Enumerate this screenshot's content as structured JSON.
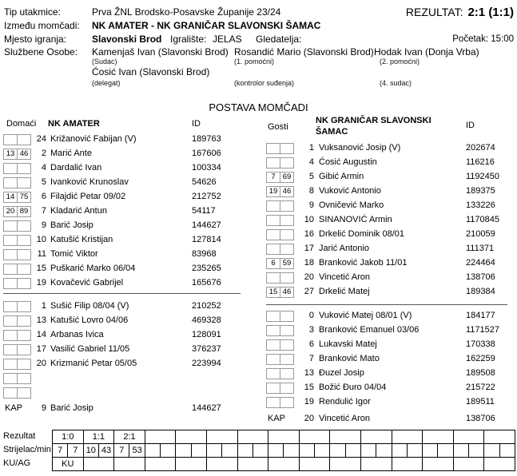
{
  "match": {
    "type_label": "Tip utakmice:",
    "type_value": "Prva ŽNL Brodsko-Posavske Županije 23/24",
    "result_label": "REZULTAT:",
    "result_value": "2:1 (1:1)",
    "teams_label": "Između momčadi:",
    "teams_value": "NK AMATER - NK GRANIČAR SLAVONSKI ŠAMAC",
    "venue_label": "Mjesto igranja:",
    "venue_value": "Slavonski Brod",
    "pitch_label": "Igralište:",
    "pitch_value": "JELAS",
    "spectators_label": "Gledatelja:",
    "kickoff_label": "Početak:",
    "kickoff_value": "15:00",
    "officials_label": "Službene Osobe:",
    "officials": [
      {
        "name": "Kamenjaš Ivan (Slavonski Brod)",
        "role": "(Sudac)"
      },
      {
        "name": "Rosandić Mario (Slavonski Brod)",
        "role": "(1. pomoćni)"
      },
      {
        "name": "Hodak Ivan (Donja Vrba)",
        "role": "(2. pomoćni)"
      },
      {
        "name": "Ćosić Ivan (Slavonski Brod)",
        "role": "(delegat)"
      },
      {
        "name": "",
        "role": "(kontrolor suđenja)"
      },
      {
        "name": "",
        "role": "(4. sudac)"
      }
    ]
  },
  "lineups": {
    "title": "POSTAVA MOMČADI",
    "id_label": "ID",
    "captain_label": "KAP",
    "home": {
      "side_label": "Domaći",
      "team_name": "NK AMATER",
      "starters": [
        {
          "sub_in": "",
          "sub_min": "",
          "num": "24",
          "name": "Križanović Fabijan  (V)",
          "id": "189763"
        },
        {
          "sub_in": "13",
          "sub_min": "46",
          "num": "2",
          "name": "Marić Ante",
          "id": "167606"
        },
        {
          "sub_in": "",
          "sub_min": "",
          "num": "4",
          "name": "Dardalić Ivan",
          "id": "100334"
        },
        {
          "sub_in": "",
          "sub_min": "",
          "num": "5",
          "name": "Ivanković Krunoslav",
          "id": "54626"
        },
        {
          "sub_in": "14",
          "sub_min": "75",
          "num": "6",
          "name": "Filajdić Petar 09/02",
          "id": "212752"
        },
        {
          "sub_in": "20",
          "sub_min": "89",
          "num": "7",
          "name": "Kladarić Antun",
          "id": "54117"
        },
        {
          "sub_in": "",
          "sub_min": "",
          "num": "9",
          "name": "Barić Josip",
          "id": "144627"
        },
        {
          "sub_in": "",
          "sub_min": "",
          "num": "10",
          "name": "Katušić Kristijan",
          "id": "127814"
        },
        {
          "sub_in": "",
          "sub_min": "",
          "num": "11",
          "name": "Tomić Viktor",
          "id": "83968"
        },
        {
          "sub_in": "",
          "sub_min": "",
          "num": "15",
          "name": "Puškarić Marko 06/04",
          "id": "235265"
        },
        {
          "sub_in": "",
          "sub_min": "",
          "num": "19",
          "name": "Kovačević Gabrijel",
          "id": "165676"
        }
      ],
      "subs": [
        {
          "sub_in": "",
          "sub_min": "",
          "num": "1",
          "name": "Sušić Filip 08/04  (V)",
          "id": "210252"
        },
        {
          "sub_in": "",
          "sub_min": "",
          "num": "13",
          "name": "Katušić Lovro 04/06",
          "id": "469328"
        },
        {
          "sub_in": "",
          "sub_min": "",
          "num": "14",
          "name": "Arbanas Ivica",
          "id": "128091"
        },
        {
          "sub_in": "",
          "sub_min": "",
          "num": "17",
          "name": "Vasilić Gabriel 11/05",
          "id": "376237"
        },
        {
          "sub_in": "",
          "sub_min": "",
          "num": "20",
          "name": "Krizmanić Petar 05/05",
          "id": "223994"
        },
        {
          "sub_in": "",
          "sub_min": "",
          "num": "",
          "name": "",
          "id": ""
        },
        {
          "sub_in": "",
          "sub_min": "",
          "num": "",
          "name": "",
          "id": ""
        }
      ],
      "captain": {
        "num": "9",
        "name": "Barić Josip",
        "id": "144627"
      }
    },
    "away": {
      "side_label": "Gosti",
      "team_name": "NK GRANIČAR SLAVONSKI ŠAMAC",
      "starters": [
        {
          "sub_in": "",
          "sub_min": "",
          "num": "1",
          "name": "Vuksanović Josip  (V)",
          "id": "202674"
        },
        {
          "sub_in": "",
          "sub_min": "",
          "num": "4",
          "name": "Ćosić Augustin",
          "id": "116216"
        },
        {
          "sub_in": "7",
          "sub_min": "69",
          "num": "5",
          "name": "Gibić Armin",
          "id": "1192450"
        },
        {
          "sub_in": "19",
          "sub_min": "46",
          "num": "8",
          "name": "Vuković Antonio",
          "id": "189375"
        },
        {
          "sub_in": "",
          "sub_min": "",
          "num": "9",
          "name": "Ovničević Marko",
          "id": "133226"
        },
        {
          "sub_in": "",
          "sub_min": "",
          "num": "10",
          "name": "SINANOVIĆ Armin",
          "id": "1170845"
        },
        {
          "sub_in": "",
          "sub_min": "",
          "num": "16",
          "name": "Drkelić Dominik 08/01",
          "id": "210059"
        },
        {
          "sub_in": "",
          "sub_min": "",
          "num": "17",
          "name": "Jarić Antonio",
          "id": "111371"
        },
        {
          "sub_in": "6",
          "sub_min": "59",
          "num": "18",
          "name": "Branković Jakob 11/01",
          "id": "224464"
        },
        {
          "sub_in": "",
          "sub_min": "",
          "num": "20",
          "name": "Vincetić Aron",
          "id": "138706"
        },
        {
          "sub_in": "15",
          "sub_min": "46",
          "num": "27",
          "name": "Drkelić Matej",
          "id": "189384"
        }
      ],
      "subs": [
        {
          "sub_in": "",
          "sub_min": "",
          "num": "0",
          "name": "Vuković Matej 08/01  (V)",
          "id": "184177"
        },
        {
          "sub_in": "",
          "sub_min": "",
          "num": "3",
          "name": "Branković Emanuel 03/06",
          "id": "1171527"
        },
        {
          "sub_in": "",
          "sub_min": "",
          "num": "6",
          "name": "Lukavski Matej",
          "id": "170338"
        },
        {
          "sub_in": "",
          "sub_min": "",
          "num": "7",
          "name": "Branković Mato",
          "id": "162259"
        },
        {
          "sub_in": "",
          "sub_min": "",
          "num": "13",
          "name": "Đuzel Josip",
          "id": "189508"
        },
        {
          "sub_in": "",
          "sub_min": "",
          "num": "15",
          "name": "Božić Đuro 04/04",
          "id": "215722"
        },
        {
          "sub_in": "",
          "sub_min": "",
          "num": "19",
          "name": "Rendulić Igor",
          "id": "189511"
        }
      ],
      "captain": {
        "num": "20",
        "name": "Vincetić Aron",
        "id": "138706"
      }
    }
  },
  "score_table": {
    "row_labels": [
      "Rezultat",
      "Strijelac/min",
      "KU/AG"
    ],
    "pairs": 15,
    "results": [
      "1:0",
      "1:1",
      "2:1"
    ],
    "scorer_min": [
      [
        "7",
        "7"
      ],
      [
        "10",
        "43"
      ],
      [
        "7",
        "53"
      ]
    ],
    "kuag": [
      "KU"
    ]
  }
}
